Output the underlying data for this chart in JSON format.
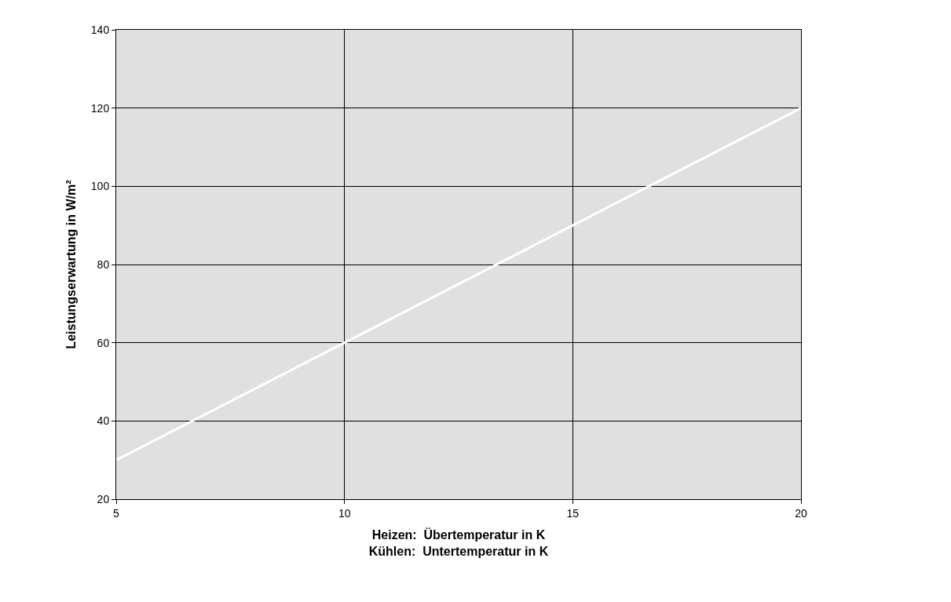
{
  "chart_data": {
    "type": "line",
    "xlabel": "Heizen:  Übertemperatur in K\nKühlen:  Untertemperatur in K",
    "ylabel": "Leistungserwartung in W/m²",
    "x": [
      5,
      10,
      15,
      20
    ],
    "series": [
      {
        "color": "#ffffff",
        "values": [
          30,
          60,
          90,
          120
        ]
      }
    ],
    "xlim": [
      5,
      20
    ],
    "xticks": [
      5,
      10,
      15,
      20
    ],
    "ylim": [
      20,
      140
    ],
    "yticks": [
      20,
      40,
      60,
      80,
      100,
      120,
      140
    ],
    "grid": true,
    "line_style": "solid"
  }
}
